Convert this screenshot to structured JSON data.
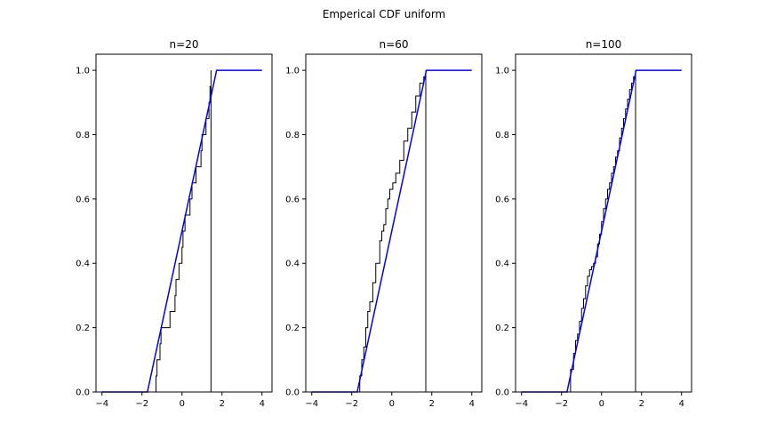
{
  "figure": {
    "title": "Emperical CDF uniform"
  },
  "chart_data": [
    {
      "type": "line",
      "title": "n=20",
      "xlim": [
        -4.3,
        4.5
      ],
      "ylim": [
        0,
        1.05
      ],
      "xticks": [
        -4,
        -2,
        0,
        2,
        4
      ],
      "yticks": [
        0.0,
        0.2,
        0.4,
        0.6,
        0.8,
        1.0
      ],
      "grid": false,
      "series": [
        {
          "kind": "step",
          "color": "#000000",
          "x": [
            -1.55,
            -1.3,
            -1.25,
            -1.1,
            -1.05,
            -0.6,
            -0.35,
            -0.3,
            -0.15,
            0.0,
            0.05,
            0.15,
            0.4,
            0.5,
            0.7,
            0.95,
            1.0,
            1.2,
            1.35,
            1.4,
            1.45
          ],
          "y": [
            0.0,
            0.05,
            0.1,
            0.15,
            0.2,
            0.25,
            0.3,
            0.35,
            0.4,
            0.45,
            0.5,
            0.55,
            0.6,
            0.65,
            0.7,
            0.75,
            0.8,
            0.85,
            0.9,
            0.95,
            1.0
          ]
        },
        {
          "kind": "line",
          "color": "#0000ff",
          "x": [
            -4.0,
            -1.73,
            1.73,
            4.0
          ],
          "y": [
            0.0,
            0.0,
            1.0,
            1.0
          ]
        }
      ]
    },
    {
      "type": "line",
      "title": "n=60",
      "xlim": [
        -4.3,
        4.5
      ],
      "ylim": [
        0,
        1.05
      ],
      "xticks": [
        -4,
        -2,
        0,
        2,
        4
      ],
      "yticks": [
        0.0,
        0.2,
        0.4,
        0.6,
        0.8,
        1.0
      ],
      "grid": false,
      "series": [
        {
          "kind": "step",
          "color": "#000000",
          "x": [
            -1.7,
            -1.6,
            -1.5,
            -1.4,
            -1.3,
            -1.2,
            -1.1,
            -0.95,
            -0.8,
            -0.6,
            -0.5,
            -0.4,
            -0.3,
            -0.2,
            -0.1,
            0.05,
            0.2,
            0.4,
            0.6,
            0.8,
            1.0,
            1.2,
            1.4,
            1.6,
            1.7
          ],
          "y": [
            0.0,
            0.05,
            0.1,
            0.14,
            0.2,
            0.25,
            0.28,
            0.34,
            0.4,
            0.47,
            0.5,
            0.52,
            0.57,
            0.6,
            0.63,
            0.65,
            0.68,
            0.72,
            0.78,
            0.82,
            0.87,
            0.92,
            0.96,
            0.98,
            1.0
          ]
        },
        {
          "kind": "line",
          "color": "#0000ff",
          "x": [
            -4.0,
            -1.73,
            1.73,
            4.0
          ],
          "y": [
            0.0,
            0.0,
            1.0,
            1.0
          ]
        }
      ]
    },
    {
      "type": "line",
      "title": "n=100",
      "xlim": [
        -4.3,
        4.5
      ],
      "ylim": [
        0,
        1.05
      ],
      "xticks": [
        -4,
        -2,
        0,
        2,
        4
      ],
      "yticks": [
        0.0,
        0.2,
        0.4,
        0.6,
        0.8,
        1.0
      ],
      "grid": false,
      "series": [
        {
          "kind": "step",
          "color": "#000000",
          "x": [
            -1.65,
            -1.55,
            -1.4,
            -1.3,
            -1.2,
            -1.1,
            -1.0,
            -0.9,
            -0.8,
            -0.7,
            -0.6,
            -0.5,
            -0.4,
            -0.3,
            -0.2,
            -0.1,
            0.0,
            0.1,
            0.2,
            0.3,
            0.4,
            0.5,
            0.6,
            0.7,
            0.8,
            0.9,
            1.0,
            1.1,
            1.2,
            1.3,
            1.4,
            1.5,
            1.6,
            1.7
          ],
          "y": [
            0.0,
            0.07,
            0.12,
            0.16,
            0.18,
            0.22,
            0.26,
            0.29,
            0.33,
            0.36,
            0.38,
            0.39,
            0.4,
            0.42,
            0.46,
            0.49,
            0.53,
            0.57,
            0.6,
            0.63,
            0.65,
            0.68,
            0.7,
            0.73,
            0.75,
            0.79,
            0.82,
            0.85,
            0.88,
            0.91,
            0.94,
            0.96,
            0.98,
            1.0
          ]
        },
        {
          "kind": "line",
          "color": "#0000ff",
          "x": [
            -4.0,
            -1.73,
            1.73,
            4.0
          ],
          "y": [
            0.0,
            0.0,
            1.0,
            1.0
          ]
        }
      ]
    }
  ]
}
